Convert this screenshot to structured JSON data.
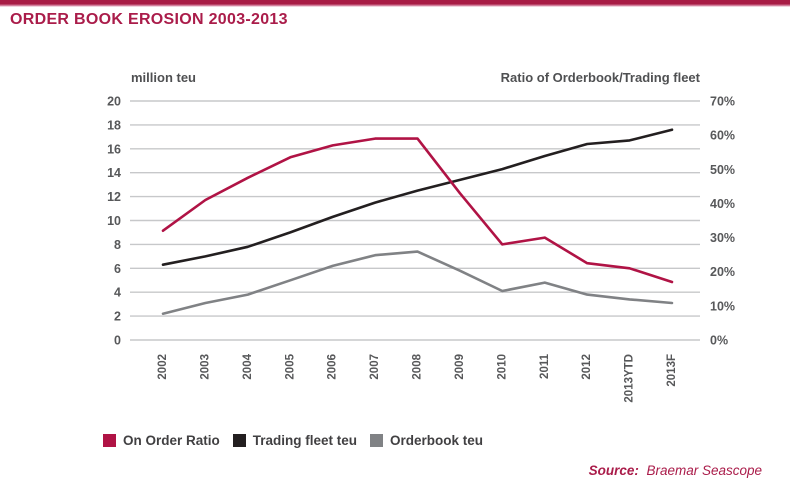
{
  "page": {
    "title": "ORDER BOOK EROSION 2003-2013",
    "source_label": "Source:",
    "source_value": "Braemar Seascope",
    "accent_color": "#aa1c4a"
  },
  "chart_data": {
    "type": "line",
    "title": "ORDER BOOK EROSION 2003-2013",
    "grid": true,
    "legend_position": "bottom-left",
    "left_axis": {
      "label": "million teu",
      "min": 0,
      "max": 20,
      "tick_step": 2
    },
    "right_axis": {
      "label": "Ratio of Orderbook/Trading fleet",
      "min": 0,
      "max": 70,
      "tick_step": 10,
      "unit": "%"
    },
    "categories": [
      "2002",
      "2003",
      "2004",
      "2005",
      "2006",
      "2007",
      "2008",
      "2009",
      "2010",
      "2011",
      "2012",
      "2013YTD",
      "2013F"
    ],
    "series": [
      {
        "name": "Trading fleet teu",
        "axis": "left",
        "color": "#231f20",
        "values": [
          6.3,
          7.0,
          7.8,
          9.0,
          10.3,
          11.5,
          12.5,
          13.4,
          14.3,
          15.4,
          16.4,
          16.7,
          17.6
        ]
      },
      {
        "name": "Orderbook teu",
        "axis": "left",
        "color": "#808285",
        "values": [
          2.2,
          3.1,
          3.8,
          5.0,
          6.2,
          7.1,
          7.4,
          5.8,
          4.1,
          4.8,
          3.8,
          3.4,
          3.1
        ]
      },
      {
        "name": "On Order Ratio",
        "axis": "right",
        "color": "#b01345",
        "values": [
          32,
          41,
          47.5,
          53.5,
          57,
          59,
          59,
          43,
          28,
          30,
          22.5,
          21,
          17
        ]
      }
    ],
    "legend_order": [
      "On Order Ratio",
      "Trading fleet teu",
      "Orderbook teu"
    ],
    "style": {
      "gridline_color": "#c7c8ca",
      "tick_label_color": "#57585a",
      "line_width": 2.6
    }
  }
}
